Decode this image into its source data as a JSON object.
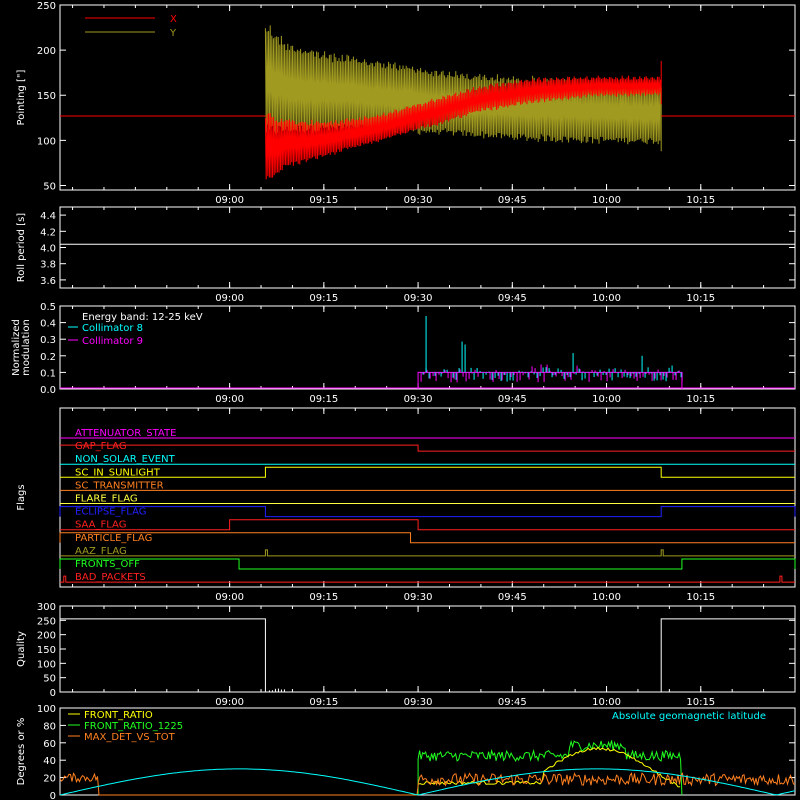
{
  "time_axis": {
    "start_hour": 8.55,
    "end_hour": 10.5
  },
  "colors": {
    "background": "#000000",
    "foreground": "#ffffff"
  },
  "chart_data": [
    {
      "id": "pointing",
      "type": "line",
      "ylabel": "Pointing [\"]",
      "ylim": [
        45,
        250
      ],
      "yticks": [
        50,
        100,
        150,
        200,
        250
      ],
      "xticks": [
        "09:00",
        "09:15",
        "09:30",
        "09:45",
        "10:00",
        "10:15"
      ],
      "xtick_hours": [
        9.0,
        9.25,
        9.5,
        9.75,
        10.0,
        10.25
      ],
      "grid": false,
      "legend": "top-left",
      "series": [
        {
          "name": "X",
          "color": "#ff0000",
          "baseline": 127,
          "active_start": 9.095,
          "active_end": 10.145,
          "envelope_time": [
            9.095,
            9.15,
            9.25,
            9.4,
            9.55,
            9.65,
            9.8,
            9.95,
            10.145
          ],
          "envelope_low": [
            52,
            70,
            82,
            100,
            118,
            132,
            143,
            150,
            152
          ],
          "envelope_high": [
            132,
            125,
            122,
            130,
            148,
            160,
            170,
            172,
            172
          ]
        },
        {
          "name": "Y",
          "color": "#a09a20",
          "baseline": 127,
          "active_start": 9.095,
          "active_end": 10.145,
          "envelope_time": [
            9.095,
            9.15,
            9.25,
            9.4,
            9.55,
            9.65,
            9.8,
            9.95,
            10.145
          ],
          "envelope_low": [
            105,
            108,
            110,
            110,
            107,
            104,
            100,
            98,
            97
          ],
          "envelope_high": [
            235,
            212,
            200,
            190,
            180,
            175,
            172,
            170,
            168
          ]
        }
      ]
    },
    {
      "id": "roll_period",
      "type": "line",
      "ylabel": "Roll period [s]",
      "ylim": [
        3.5,
        4.5
      ],
      "yticks": [
        3.6,
        3.8,
        4.0,
        4.2,
        4.4
      ],
      "xticks": [
        "09:00",
        "09:15",
        "09:30",
        "09:45",
        "10:00",
        "10:15"
      ],
      "series": [
        {
          "name": "",
          "color": "#ffffff",
          "value": 4.04
        }
      ]
    },
    {
      "id": "modulation",
      "type": "bar",
      "ylabel": "Normalized\nmodulation",
      "ylim": [
        0,
        0.5
      ],
      "yticks": [
        0.0,
        0.1,
        0.2,
        0.3,
        0.4,
        0.5
      ],
      "xticks": [
        "09:00",
        "09:15",
        "09:30",
        "09:45",
        "10:00",
        "10:15"
      ],
      "annotation": "Energy band: 12-25 keV",
      "active_start": 9.5,
      "active_end": 10.2,
      "series": [
        {
          "name": "Collimator 8",
          "color": "#00ffff",
          "typical": 0.09,
          "max": 0.44
        },
        {
          "name": "Collimator 9",
          "color": "#ff00ff",
          "typical": 0.08,
          "max": 0.2
        }
      ]
    },
    {
      "id": "flags",
      "type": "line",
      "ylabel": "Flags",
      "xticks": [
        "09:00",
        "09:15",
        "09:30",
        "09:45",
        "10:00",
        "10:15"
      ],
      "series": [
        {
          "name": "ATTENUATOR_STATE",
          "color": "#ff00ff",
          "steps": []
        },
        {
          "name": "GAP_FLAG",
          "color": "#ff2020",
          "steps": [
            [
              9.5,
              10.5
            ]
          ],
          "step_dir": "down_after"
        },
        {
          "name": "NON_SOLAR_EVENT",
          "color": "#00ffff",
          "steps": []
        },
        {
          "name": "SC_IN_SUNLIGHT",
          "color": "#ffff00",
          "steps": [
            [
              9.095,
              10.145
            ]
          ]
        },
        {
          "name": "SC_TRANSMITTER",
          "color": "#ff8020",
          "steps": []
        },
        {
          "name": "FLARE_FLAG",
          "color": "#ffff40",
          "steps": []
        },
        {
          "name": "ECLIPSE_FLAG",
          "color": "#2020ff",
          "steps": [
            [
              8.55,
              9.095
            ],
            [
              10.145,
              10.5
            ]
          ]
        },
        {
          "name": "SAA_FLAG",
          "color": "#ff2020",
          "steps": [
            [
              9.0,
              9.5
            ]
          ]
        },
        {
          "name": "PARTICLE_FLAG",
          "color": "#ff8020",
          "steps": [
            [
              8.55,
              9.48
            ]
          ]
        },
        {
          "name": "AAZ_FLAG",
          "color": "#a09a20",
          "spikes": [
            9.095,
            10.145
          ]
        },
        {
          "name": "FRONTS_OFF",
          "color": "#20ff20",
          "steps": [
            [
              8.55,
              9.025
            ],
            [
              10.2,
              10.5
            ]
          ]
        },
        {
          "name": "BAD_PACKETS",
          "color": "#ff2020",
          "spikes": [
            8.56,
            10.46
          ]
        }
      ]
    },
    {
      "id": "quality",
      "type": "line",
      "ylabel": "Quality",
      "ylim": [
        0,
        300
      ],
      "yticks": [
        0,
        50,
        100,
        150,
        200,
        250,
        300
      ],
      "xticks": [
        "09:00",
        "09:15",
        "09:30",
        "09:45",
        "10:00",
        "10:15"
      ],
      "series": [
        {
          "name": "",
          "color": "#ffffff",
          "high": 255,
          "low_start": 9.095,
          "low_end": 10.145
        }
      ]
    },
    {
      "id": "front_ratio",
      "type": "line",
      "ylabel": "Degrees or %",
      "ylim": [
        0,
        100
      ],
      "yticks": [
        0,
        20,
        40,
        60,
        80,
        100
      ],
      "series": [
        {
          "name": "FRONT_RATIO",
          "color": "#ffff00"
        },
        {
          "name": "FRONT_RATIO_1225",
          "color": "#20ff20",
          "level": 48
        },
        {
          "name": "MAX_DET_VS_TOT",
          "color": "#ff8020",
          "level": 22
        },
        {
          "name": "Absolute geomagnetic latitude",
          "color": "#00ffff",
          "max": 30
        }
      ]
    }
  ]
}
